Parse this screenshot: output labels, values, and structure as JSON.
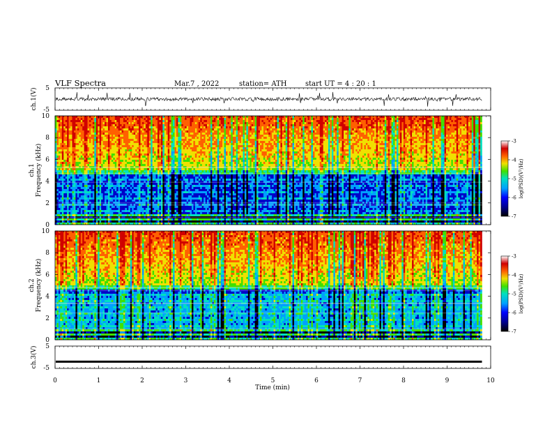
{
  "header": {
    "title": "VLF  Spectra",
    "date": "Mar.7 , 2022",
    "station": "station= ATH",
    "start_ut": "start  UT  =   4  : 20 : 1"
  },
  "panels": {
    "ch1_wave": {
      "ylabel": "ch.1(V)",
      "yticks": [
        "5",
        "-5"
      ]
    },
    "ch1_spec": {
      "ylabel_top": "ch.1",
      "ylabel_bottom": "Frequency  (kHz)",
      "yticks": [
        "0",
        "2",
        "4",
        "6",
        "8",
        "10"
      ],
      "colorbar_label": "log(PSD)(V²/Hz)",
      "colorbar_ticks": [
        "-3",
        "-4",
        "-5",
        "-6",
        "-7"
      ]
    },
    "ch2_spec": {
      "ylabel_top": "ch.2",
      "ylabel_bottom": "Frequency  (kHz)",
      "yticks": [
        "0",
        "2",
        "4",
        "6",
        "8",
        "10"
      ],
      "colorbar_label": "log(PSD)(V²/Hz)",
      "colorbar_ticks": [
        "-3",
        "-4",
        "-5",
        "-6",
        "-7"
      ]
    },
    "ch3_wave": {
      "ylabel": "ch.3(V)",
      "yticks": [
        "5",
        "-5"
      ]
    }
  },
  "xaxis": {
    "label": "Time  (min)",
    "ticks": [
      "0",
      "1",
      "2",
      "3",
      "4",
      "5",
      "6",
      "7",
      "8",
      "9",
      "10"
    ]
  },
  "chart_data": [
    {
      "type": "line",
      "name": "ch.1 waveform",
      "ylabel": "ch.1(V)",
      "xlabel": "Time  (min)",
      "xlim": [
        0,
        10
      ],
      "ylim": [
        -5,
        5
      ],
      "data_extent_min": 9.8,
      "approx_level": 0.0,
      "approx_spread": 1.5
    },
    {
      "type": "heatmap",
      "name": "ch.1 spectrogram",
      "ylabel": "Frequency  (kHz)",
      "xlim": [
        0,
        10
      ],
      "ylim": [
        0,
        10
      ],
      "colorscale_range": [
        -7,
        -3
      ],
      "colorbar_label": "log(PSD)(V²/Hz)",
      "colors": [
        "#000000",
        "#0000c8",
        "#00a0ff",
        "#00e0c0",
        "#40e000",
        "#f0e000",
        "#ff6000",
        "#d00000",
        "#ffffff"
      ]
    },
    {
      "type": "heatmap",
      "name": "ch.2 spectrogram",
      "ylabel": "Frequency  (kHz)",
      "xlim": [
        0,
        10
      ],
      "ylim": [
        0,
        10
      ],
      "colorscale_range": [
        -7,
        -3
      ],
      "colorbar_label": "log(PSD)(V²/Hz)"
    },
    {
      "type": "line",
      "name": "ch.3 waveform",
      "ylabel": "ch.3(V)",
      "xlim": [
        0,
        10
      ],
      "ylim": [
        -5,
        5
      ],
      "approx_level": -2.0
    }
  ]
}
